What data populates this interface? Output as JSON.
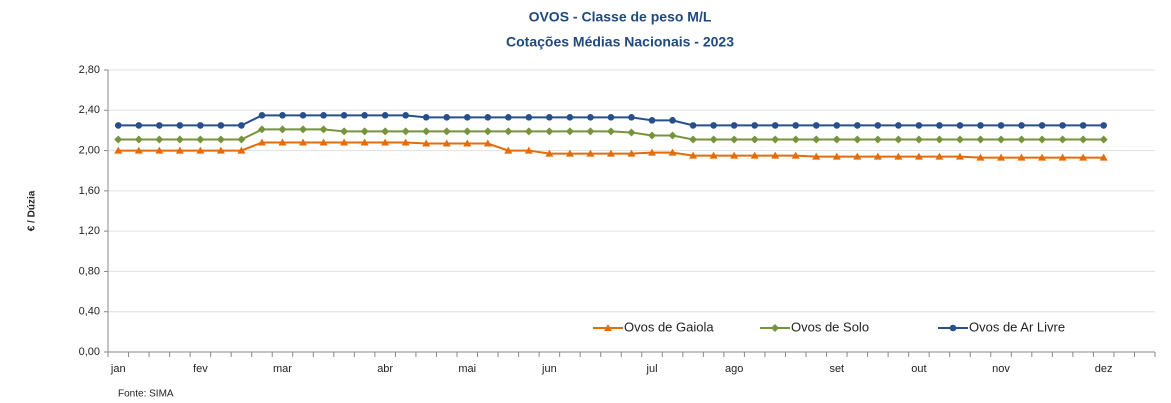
{
  "chart_data": {
    "type": "line",
    "title": "OVOS - Classe de peso M/L",
    "subtitle": "Cotações Médias Nacionais - 2023",
    "y_label": "€ / Dúzia",
    "source": "Fonte: SIMA",
    "categories": [
      "jan",
      null,
      null,
      null,
      "fev",
      null,
      null,
      null,
      "mar",
      null,
      null,
      null,
      null,
      "abr",
      null,
      null,
      null,
      "mai",
      null,
      null,
      null,
      "jun",
      null,
      null,
      null,
      null,
      "jul",
      null,
      null,
      null,
      "ago",
      null,
      null,
      null,
      null,
      "set",
      null,
      null,
      null,
      "out",
      null,
      null,
      null,
      "nov",
      null,
      null,
      null,
      null,
      "dez",
      null,
      null
    ],
    "series": [
      {
        "name": "Ovos de Gaiola",
        "color": "#e46c0a",
        "marker": "triangle",
        "values": [
          2.0,
          2.0,
          2.0,
          2.0,
          2.0,
          2.0,
          2.0,
          2.08,
          2.08,
          2.08,
          2.08,
          2.08,
          2.08,
          2.08,
          2.08,
          2.07,
          2.07,
          2.07,
          2.07,
          2.0,
          2.0,
          1.97,
          1.97,
          1.97,
          1.97,
          1.97,
          1.98,
          1.98,
          1.95,
          1.95,
          1.95,
          1.95,
          1.95,
          1.95,
          1.94,
          1.94,
          1.94,
          1.94,
          1.94,
          1.94,
          1.94,
          1.94,
          1.93,
          1.93,
          1.93,
          1.93,
          1.93,
          1.93,
          1.93,
          null,
          null
        ]
      },
      {
        "name": "Ovos de Solo",
        "color": "#77933c",
        "marker": "diamond",
        "values": [
          2.11,
          2.11,
          2.11,
          2.11,
          2.11,
          2.11,
          2.11,
          2.21,
          2.21,
          2.21,
          2.21,
          2.19,
          2.19,
          2.19,
          2.19,
          2.19,
          2.19,
          2.19,
          2.19,
          2.19,
          2.19,
          2.19,
          2.19,
          2.19,
          2.19,
          2.18,
          2.15,
          2.15,
          2.11,
          2.11,
          2.11,
          2.11,
          2.11,
          2.11,
          2.11,
          2.11,
          2.11,
          2.11,
          2.11,
          2.11,
          2.11,
          2.11,
          2.11,
          2.11,
          2.11,
          2.11,
          2.11,
          2.11,
          2.11,
          null,
          null
        ]
      },
      {
        "name": "Ovos de Ar Livre",
        "color": "#264f8c",
        "marker": "circle",
        "values": [
          2.25,
          2.25,
          2.25,
          2.25,
          2.25,
          2.25,
          2.25,
          2.35,
          2.35,
          2.35,
          2.35,
          2.35,
          2.35,
          2.35,
          2.35,
          2.33,
          2.33,
          2.33,
          2.33,
          2.33,
          2.33,
          2.33,
          2.33,
          2.33,
          2.33,
          2.33,
          2.3,
          2.3,
          2.25,
          2.25,
          2.25,
          2.25,
          2.25,
          2.25,
          2.25,
          2.25,
          2.25,
          2.25,
          2.25,
          2.25,
          2.25,
          2.25,
          2.25,
          2.25,
          2.25,
          2.25,
          2.25,
          2.25,
          2.25,
          null,
          null
        ]
      }
    ],
    "ylim": [
      0,
      2.8
    ],
    "yticks": [
      {
        "value": 0,
        "label": "0,00"
      },
      {
        "value": 0.4,
        "label": "0,40"
      },
      {
        "value": 0.8,
        "label": "0,80"
      },
      {
        "value": 1.2,
        "label": "1,20"
      },
      {
        "value": 1.6,
        "label": "1,60"
      },
      {
        "value": 2.0,
        "label": "2,00"
      },
      {
        "value": 2.4,
        "label": "2,40"
      },
      {
        "value": 2.8,
        "label": "2,80"
      }
    ],
    "grid": true,
    "legend": "lower right"
  }
}
